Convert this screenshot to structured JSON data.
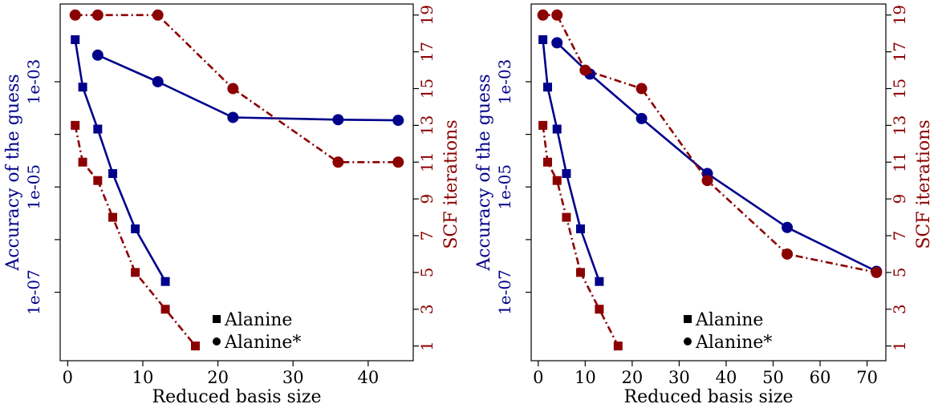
{
  "colors": {
    "accuracy": "#00008B",
    "scf": "#8B0000",
    "axis": "#000000"
  },
  "chart_data": [
    {
      "type": "line",
      "xlabel": "Reduced basis size",
      "ylabel_left": "Accuracy of the guess",
      "ylabel_right": "SCF iterations",
      "x_ticks": [
        0,
        10,
        20,
        30,
        40
      ],
      "x_tick_labels": [
        "0",
        "10",
        "20",
        "30",
        "40"
      ],
      "xlim": [
        -1,
        46
      ],
      "y_left_scale": "log",
      "y_left_ticks": [
        1e-07,
        1e-05,
        0.001
      ],
      "y_left_tick_labels": [
        "1e-07",
        "1e-05",
        "1e-03"
      ],
      "y_left_minor_ticks": [
        1e-06,
        0.0001
      ],
      "ylim_left": [
        5e-09,
        0.03
      ],
      "y_right_ticks": [
        1,
        3,
        5,
        7,
        9,
        11,
        13,
        15,
        17,
        19
      ],
      "y_right_tick_labels": [
        "1",
        "3",
        "5",
        "7",
        "9",
        "11",
        "13",
        "15",
        "17",
        "19"
      ],
      "ylim_right": [
        0.2,
        19.6
      ],
      "legend": {
        "position": "bottom-right",
        "entries": [
          "Alanine",
          "Alanine*"
        ]
      },
      "series": [
        {
          "name": "Alanine",
          "axis": "left",
          "marker": "square",
          "line": "solid",
          "x": [
            1,
            2,
            4,
            6,
            9,
            13
          ],
          "y": [
            0.0063,
            0.00079,
            0.000126,
            1.8e-05,
            1.6e-06,
            1.6e-07
          ]
        },
        {
          "name": "Alanine",
          "axis": "right",
          "marker": "square",
          "line": "dashdot",
          "x": [
            1,
            2,
            4,
            6,
            9,
            13,
            17
          ],
          "y": [
            13,
            11,
            10,
            8,
            5,
            3,
            1
          ]
        },
        {
          "name": "Alanine*",
          "axis": "left",
          "marker": "circle",
          "line": "solid",
          "x": [
            4,
            12,
            22,
            36,
            44
          ],
          "y": [
            0.0032,
            0.001,
            0.00021,
            0.00019,
            0.000185
          ]
        },
        {
          "name": "Alanine*",
          "axis": "right",
          "marker": "circle",
          "line": "dashdot",
          "x": [
            1,
            4,
            12,
            22,
            36,
            44
          ],
          "y": [
            19,
            19,
            19,
            15,
            11,
            11
          ]
        }
      ]
    },
    {
      "type": "line",
      "xlabel": "Reduced basis size",
      "ylabel_left": "Accuracy of the guess",
      "ylabel_right": "SCF iterations",
      "x_ticks": [
        0,
        10,
        20,
        30,
        40,
        50,
        60,
        70
      ],
      "x_tick_labels": [
        "0",
        "10",
        "20",
        "30",
        "40",
        "50",
        "60",
        "70"
      ],
      "xlim": [
        -1.5,
        74
      ],
      "y_left_scale": "log",
      "y_left_ticks": [
        1e-07,
        1e-05,
        0.001
      ],
      "y_left_tick_labels": [
        "1e-07",
        "1e-05",
        "1e-03"
      ],
      "y_left_minor_ticks": [
        1e-06,
        0.0001
      ],
      "ylim_left": [
        5e-09,
        0.03
      ],
      "y_right_ticks": [
        1,
        3,
        5,
        7,
        9,
        11,
        13,
        15,
        17,
        19
      ],
      "y_right_tick_labels": [
        "1",
        "3",
        "5",
        "7",
        "9",
        "11",
        "13",
        "15",
        "17",
        "19"
      ],
      "ylim_right": [
        0.2,
        19.6
      ],
      "legend": {
        "position": "bottom-center",
        "entries": [
          "Alanine",
          "Alanine*"
        ]
      },
      "series": [
        {
          "name": "Alanine",
          "axis": "left",
          "marker": "square",
          "line": "solid",
          "x": [
            1,
            2,
            4,
            6,
            9,
            13
          ],
          "y": [
            0.0063,
            0.00079,
            0.000126,
            1.8e-05,
            1.6e-06,
            1.6e-07
          ]
        },
        {
          "name": "Alanine",
          "axis": "right",
          "marker": "square",
          "line": "dashdot",
          "x": [
            1,
            2,
            4,
            6,
            9,
            13,
            17
          ],
          "y": [
            13,
            11,
            10,
            8,
            5,
            3,
            1
          ]
        },
        {
          "name": "Alanine*",
          "axis": "left",
          "marker": "circle",
          "line": "solid",
          "x": [
            4,
            11,
            22,
            36,
            53,
            72
          ],
          "y": [
            0.0055,
            0.0014,
            0.0002,
            1.8e-05,
            1.7e-06,
            2.5e-07
          ]
        },
        {
          "name": "Alanine*",
          "axis": "right",
          "marker": "circle",
          "line": "dashdot",
          "x": [
            1,
            4,
            10,
            22,
            36,
            53,
            72
          ],
          "y": [
            19,
            19,
            16,
            15,
            10,
            6,
            5
          ]
        }
      ]
    }
  ]
}
